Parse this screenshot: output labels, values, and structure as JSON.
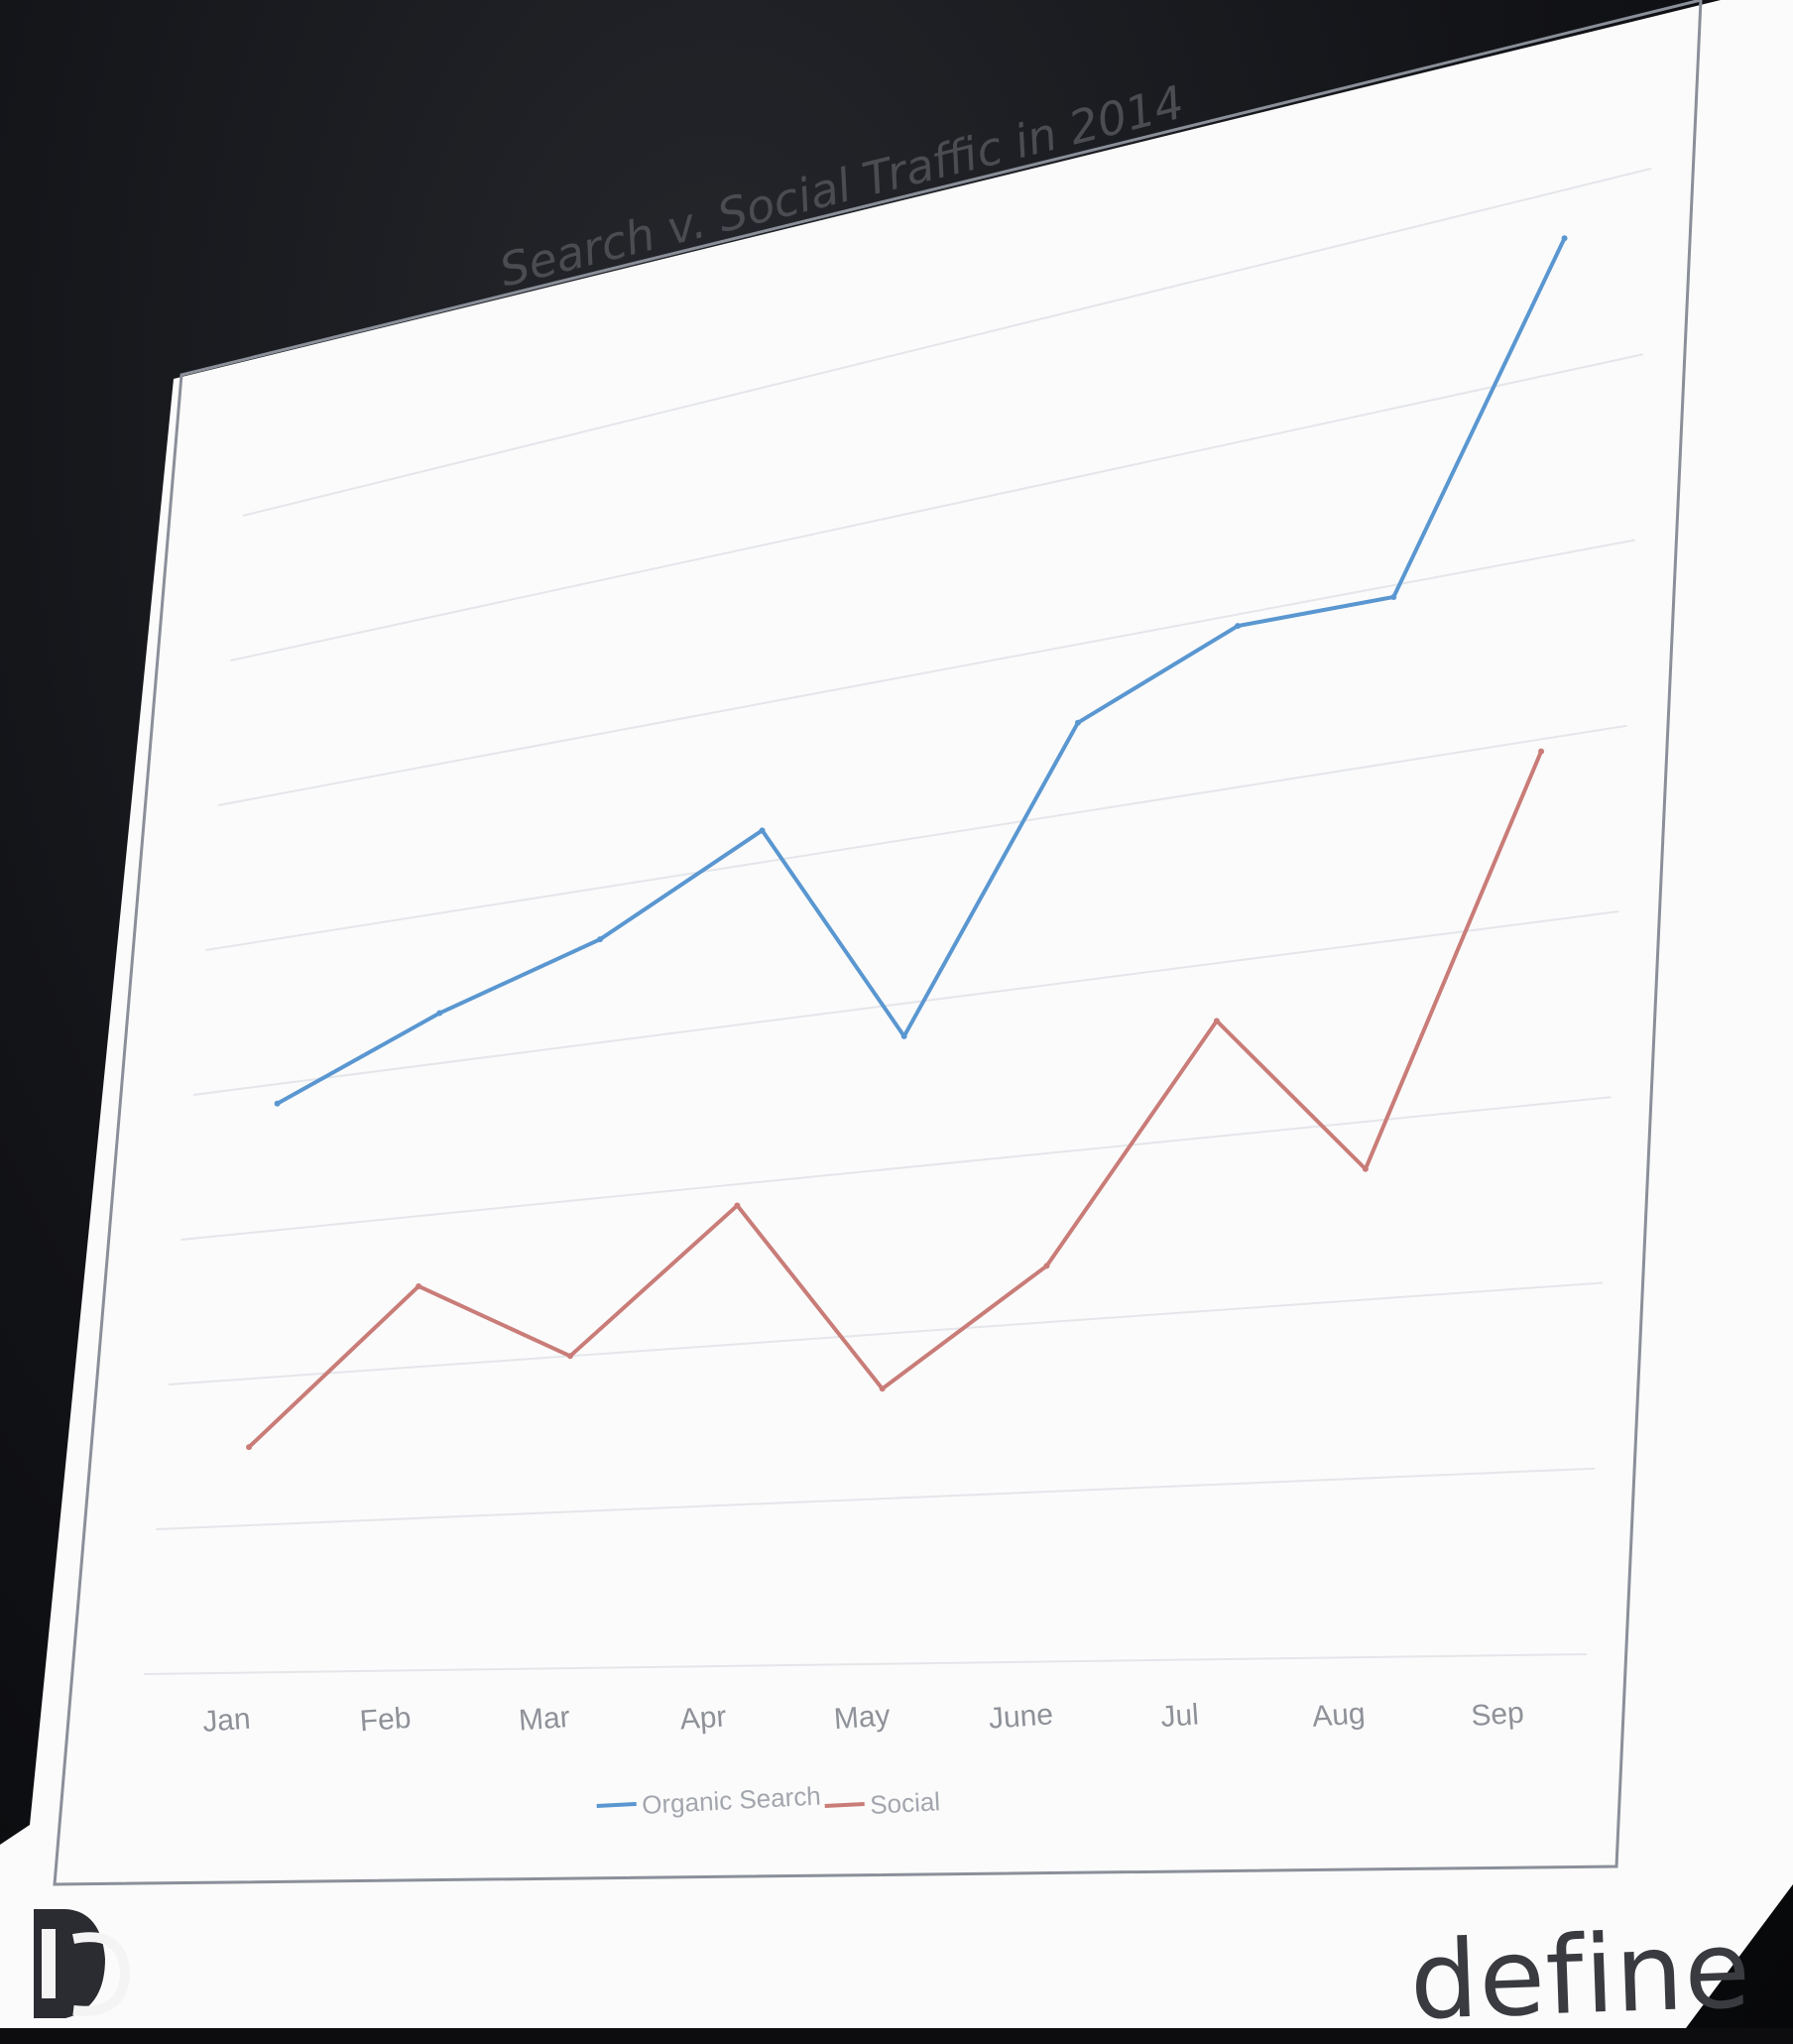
{
  "slide": {
    "brand_text": "define",
    "logo_text": "DC"
  },
  "colors": {
    "organic_search": "#5a97d1",
    "social": "#c97c78",
    "slide_background": "#ffffff",
    "room_background": "#111216"
  },
  "chart_data": {
    "type": "line",
    "title": "Search v. Social Traffic in 2014",
    "xlabel": "",
    "ylabel": "",
    "categories": [
      "Jan",
      "Feb",
      "Mar",
      "Apr",
      "May",
      "June",
      "Jul",
      "Aug",
      "Sep"
    ],
    "y_tick_labels": [
      "",
      "",
      "",
      "",
      "",
      "",
      "",
      "",
      ""
    ],
    "series": [
      {
        "name": "Organic Search",
        "color": "#5a97d1",
        "values": [
          5.8,
          6.5,
          7.0,
          7.8,
          5.7,
          8.3,
          8.9,
          8.9,
          11.6
        ]
      },
      {
        "name": "Social",
        "color": "#c97c78",
        "values": [
          2.3,
          3.8,
          3.0,
          4.3,
          2.5,
          3.5,
          5.5,
          4.1,
          7.4
        ]
      }
    ],
    "ylim": [
      0,
      12
    ],
    "grid": true,
    "legend": "bottom"
  }
}
